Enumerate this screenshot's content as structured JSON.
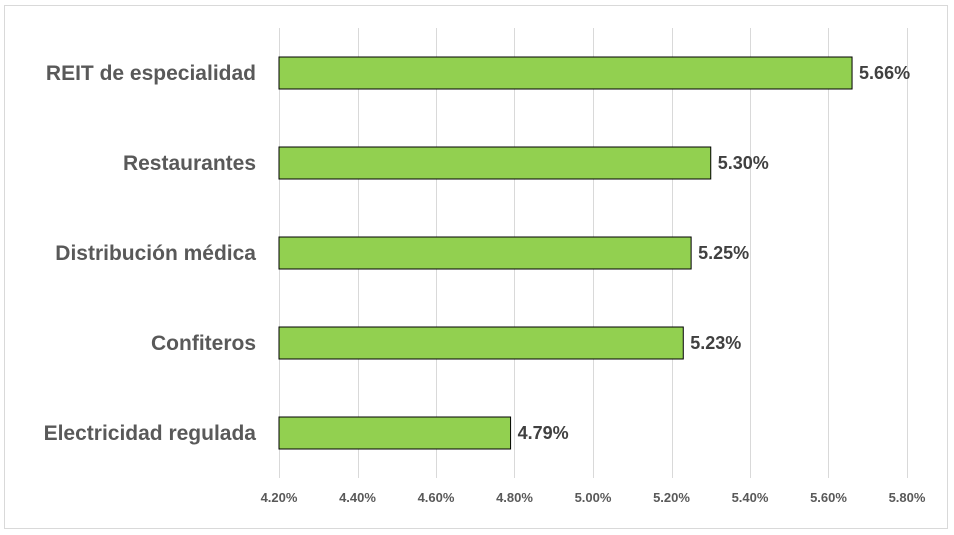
{
  "chart_data": {
    "type": "bar",
    "orientation": "horizontal",
    "categories": [
      "REIT de especialidad",
      "Restaurantes",
      "Distribución médica",
      "Confiteros",
      "Electricidad regulada"
    ],
    "values": [
      5.66,
      5.3,
      5.25,
      5.23,
      4.79
    ],
    "value_labels": [
      "5.66%",
      "5.30%",
      "5.25%",
      "5.23%",
      "4.79%"
    ],
    "xlim": [
      4.2,
      5.8
    ],
    "x_ticks": [
      4.2,
      4.4,
      4.6,
      4.8,
      5.0,
      5.2,
      5.4,
      5.6,
      5.8
    ],
    "x_tick_labels": [
      "4.20%",
      "4.40%",
      "4.60%",
      "4.80%",
      "5.00%",
      "5.20%",
      "5.40%",
      "5.60%",
      "5.80%"
    ],
    "grid": "vertical",
    "legend": "none",
    "colors": {
      "bar": "#92d050",
      "bar_border": "#000000"
    }
  }
}
